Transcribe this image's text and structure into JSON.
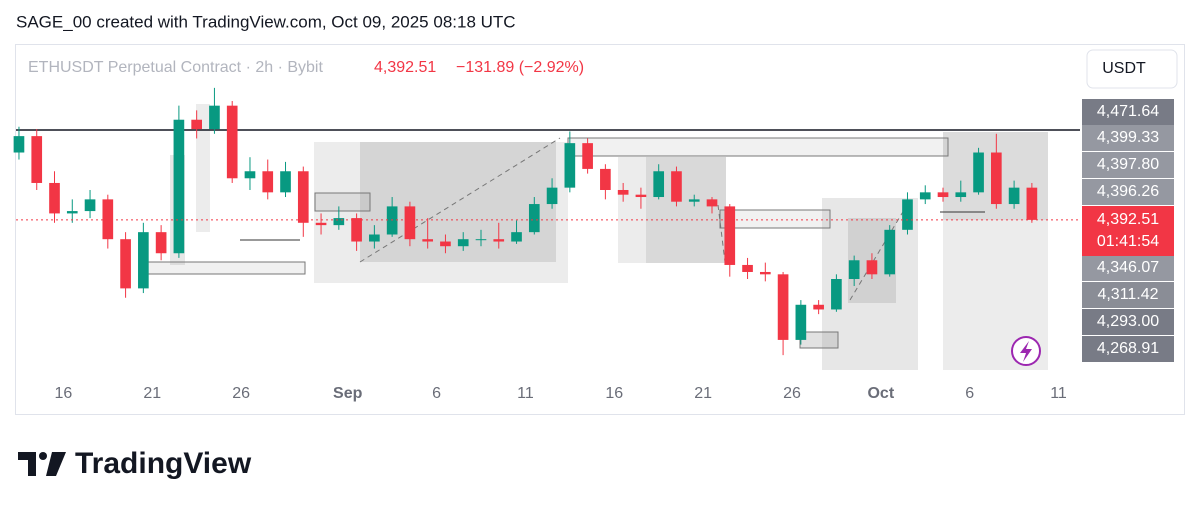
{
  "header": "SAGE_00 created with TradingView.com, Oct 09, 2025 08:18 UTC",
  "footer": "TradingView",
  "chart_data": {
    "type": "candlestick",
    "symbol": "ETHUSDT Perpetual Contract · 2h · Bybit",
    "change": "−131.89 (−2.92%)",
    "currency": "USDT",
    "countdown": "01:41:54",
    "last_price": {
      "value": 4392.51,
      "label": "4,392.51"
    },
    "level_labels": [
      "4,471.64",
      "4,399.33",
      "4,397.80",
      "4,396.26",
      "4,346.07",
      "4,311.42",
      "4,293.00",
      "4,268.91"
    ],
    "hline": 4776,
    "up_color": "#089981",
    "down_color": "#f23645",
    "x": [
      "2025-08-13",
      "2025-08-14",
      "2025-08-15",
      "2025-08-16",
      "2025-08-17",
      "2025-08-18",
      "2025-08-19",
      "2025-08-20",
      "2025-08-21",
      "2025-08-22",
      "2025-08-23",
      "2025-08-24",
      "2025-08-25",
      "2025-08-26",
      "2025-08-27",
      "2025-08-28",
      "2025-08-29",
      "2025-08-30",
      "2025-08-31",
      "2025-09-01",
      "2025-09-02",
      "2025-09-03",
      "2025-09-04",
      "2025-09-05",
      "2025-09-06",
      "2025-09-07",
      "2025-09-08",
      "2025-09-09",
      "2025-09-10",
      "2025-09-11",
      "2025-09-12",
      "2025-09-13",
      "2025-09-14",
      "2025-09-15",
      "2025-09-16",
      "2025-09-17",
      "2025-09-18",
      "2025-09-19",
      "2025-09-20",
      "2025-09-21",
      "2025-09-22",
      "2025-09-23",
      "2025-09-24",
      "2025-09-25",
      "2025-09-26",
      "2025-09-27",
      "2025-09-28",
      "2025-09-29",
      "2025-09-30",
      "2025-10-01",
      "2025-10-02",
      "2025-10-03",
      "2025-10-04",
      "2025-10-05",
      "2025-10-06",
      "2025-10-07",
      "2025-10-08",
      "2025-10-09"
    ],
    "open": [
      4680,
      4750,
      4550,
      4420,
      4430,
      4480,
      4310,
      4100,
      4340,
      4250,
      4820,
      4780,
      4880,
      4570,
      4600,
      4510,
      4600,
      4380,
      4370,
      4400,
      4300,
      4330,
      4450,
      4310,
      4300,
      4280,
      4310,
      4310,
      4300,
      4340,
      4460,
      4530,
      4720,
      4610,
      4520,
      4500,
      4490,
      4600,
      4470,
      4480,
      4450,
      4200,
      4170,
      4160,
      3880,
      4030,
      4010,
      4140,
      4220,
      4160,
      4350,
      4480,
      4510,
      4490,
      4510,
      4680,
      4460,
      4530
    ],
    "high": [
      4790,
      4780,
      4600,
      4480,
      4520,
      4500,
      4340,
      4380,
      4370,
      4880,
      4860,
      4956,
      4900,
      4660,
      4650,
      4640,
      4620,
      4420,
      4450,
      4420,
      4370,
      4490,
      4470,
      4400,
      4330,
      4340,
      4350,
      4380,
      4390,
      4490,
      4570,
      4770,
      4740,
      4630,
      4550,
      4530,
      4630,
      4620,
      4500,
      4490,
      4460,
      4230,
      4210,
      4170,
      4050,
      4050,
      4160,
      4240,
      4250,
      4370,
      4510,
      4540,
      4530,
      4560,
      4700,
      4760,
      4560,
      4550
    ],
    "low": [
      4650,
      4520,
      4380,
      4380,
      4400,
      4270,
      4060,
      4080,
      4220,
      4230,
      4740,
      4760,
      4550,
      4520,
      4480,
      4490,
      4320,
      4330,
      4350,
      4260,
      4270,
      4320,
      4280,
      4270,
      4250,
      4260,
      4280,
      4270,
      4290,
      4330,
      4440,
      4510,
      4590,
      4480,
      4470,
      4440,
      4480,
      4450,
      4450,
      4420,
      4150,
      4140,
      4130,
      3815,
      3860,
      3990,
      4000,
      4110,
      4140,
      4150,
      4330,
      4460,
      4470,
      4470,
      4500,
      4440,
      4440,
      4380
    ],
    "close": [
      4750,
      4550,
      4420,
      4430,
      4480,
      4310,
      4100,
      4340,
      4250,
      4820,
      4780,
      4880,
      4570,
      4600,
      4510,
      4600,
      4380,
      4370,
      4400,
      4300,
      4330,
      4450,
      4310,
      4300,
      4280,
      4310,
      4310,
      4300,
      4340,
      4460,
      4530,
      4720,
      4610,
      4520,
      4500,
      4490,
      4600,
      4470,
      4480,
      4450,
      4200,
      4170,
      4160,
      3880,
      4030,
      4010,
      4140,
      4220,
      4160,
      4350,
      4480,
      4510,
      4490,
      4510,
      4680,
      4460,
      4530,
      4392.51
    ],
    "xlim": [
      "2025-08-13T08:00Z",
      "2025-10-12T05:00Z"
    ],
    "xticks": [
      {
        "value": "2025-08-16",
        "label": "16"
      },
      {
        "value": "2025-08-21",
        "label": "21"
      },
      {
        "value": "2025-08-26",
        "label": "26"
      },
      {
        "value": "2025-09-01",
        "label": "Sep"
      },
      {
        "value": "2025-09-06",
        "label": "6"
      },
      {
        "value": "2025-09-11",
        "label": "11"
      },
      {
        "value": "2025-09-16",
        "label": "16"
      },
      {
        "value": "2025-09-21",
        "label": "21"
      },
      {
        "value": "2025-09-26",
        "label": "26"
      },
      {
        "value": "2025-10-01",
        "label": "Oct"
      },
      {
        "value": "2025-10-06",
        "label": "6"
      },
      {
        "value": "2025-10-11",
        "label": "11"
      }
    ],
    "ylim": [
      3743,
      5139
    ]
  }
}
